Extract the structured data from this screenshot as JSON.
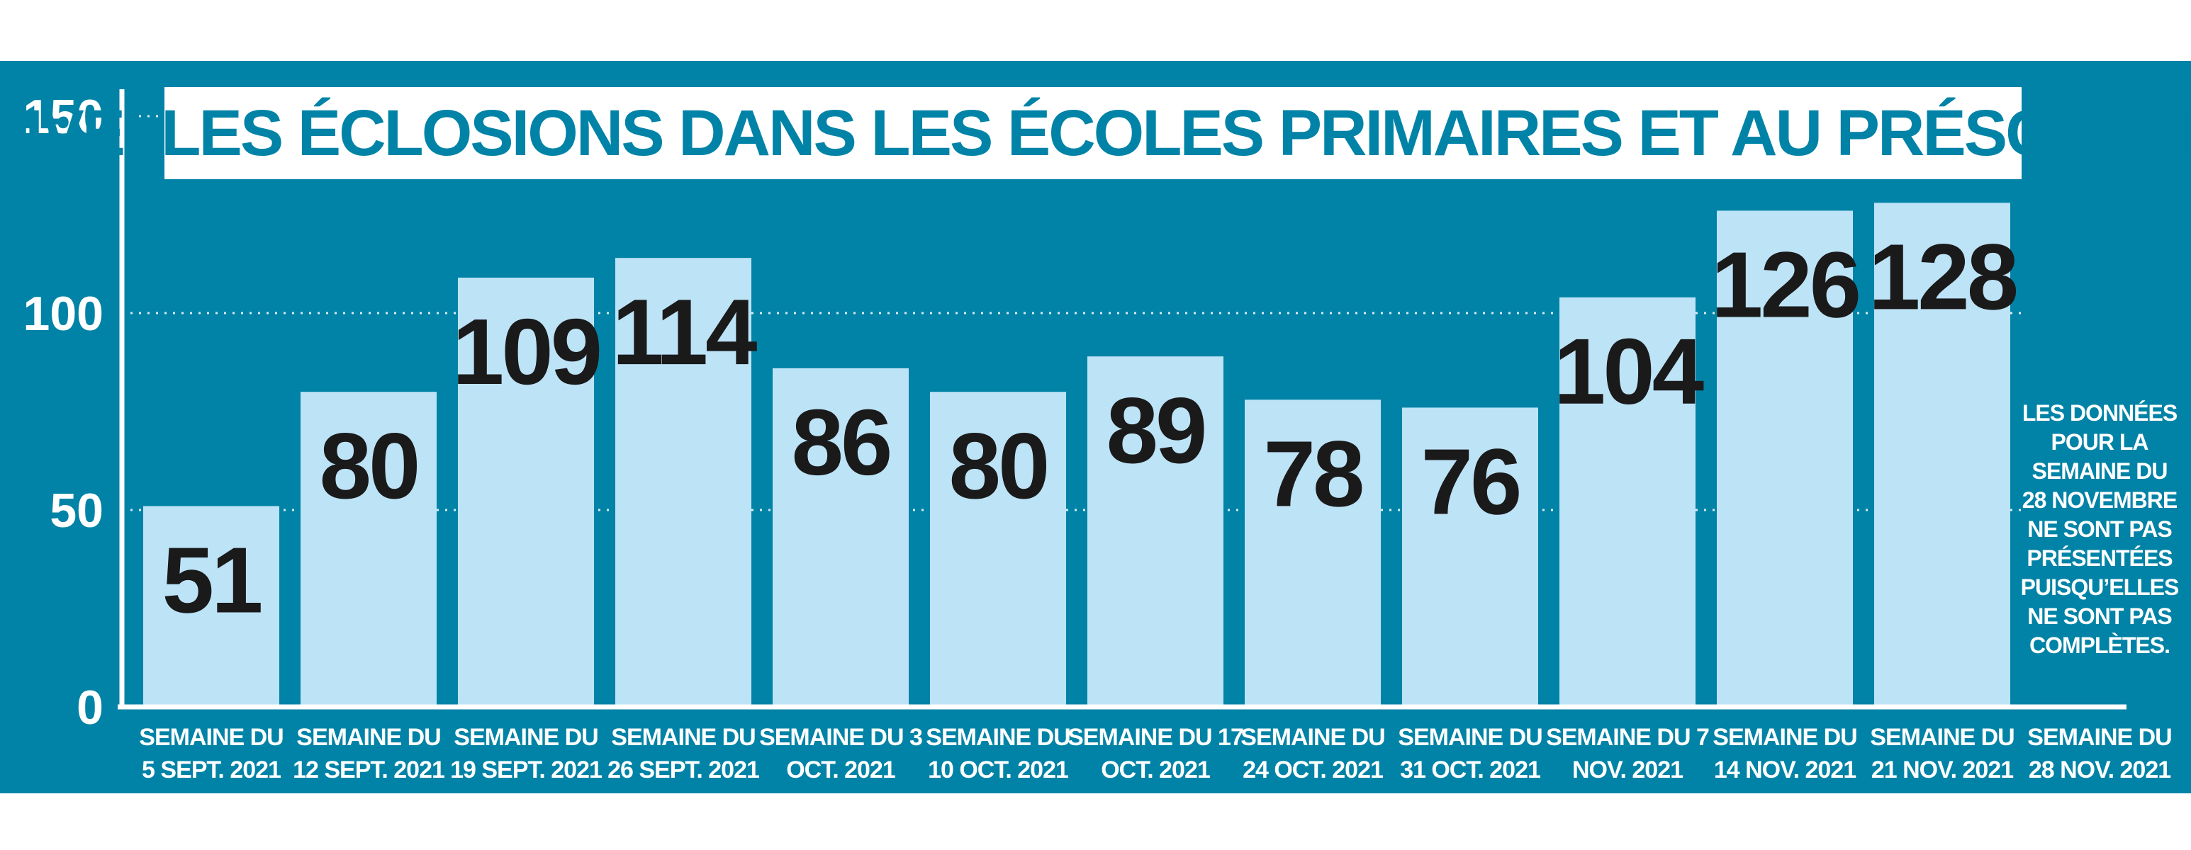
{
  "colors": {
    "background": "#0083a6",
    "bar": "#bde3f7",
    "value_label": "#1a1a1a",
    "axis_text": "#ffffff",
    "title_box": "#ffffff",
    "title_text": "#0083a6"
  },
  "chart_data": {
    "type": "bar",
    "title": "NOUVELLES ÉCLOSIONS DANS LES ÉCOLES PRIMAIRES ET AU PRÉSCOLAIRE",
    "xlabel": "",
    "ylabel": "",
    "ylim": [
      0,
      150
    ],
    "yticks": [
      "0",
      "50",
      "100",
      "150"
    ],
    "grid": true,
    "categories": [
      [
        "SEMAINE DU",
        "5 SEPT. 2021"
      ],
      [
        "SEMAINE DU",
        "12 SEPT. 2021"
      ],
      [
        "SEMAINE DU",
        "19 SEPT. 2021"
      ],
      [
        "SEMAINE DU",
        "26 SEPT. 2021"
      ],
      [
        "SEMAINE DU 3",
        "OCT. 2021"
      ],
      [
        "SEMAINE DU",
        "10 OCT. 2021"
      ],
      [
        "SEMAINE DU 17",
        "OCT. 2021"
      ],
      [
        "SEMAINE DU",
        "24 OCT. 2021"
      ],
      [
        "SEMAINE DU",
        "31 OCT. 2021"
      ],
      [
        "SEMAINE DU 7",
        "NOV. 2021"
      ],
      [
        "SEMAINE DU",
        "14 NOV. 2021"
      ],
      [
        "SEMAINE DU",
        "21 NOV. 2021"
      ],
      [
        "SEMAINE DU",
        "28 NOV. 2021"
      ]
    ],
    "values": [
      51,
      80,
      109,
      114,
      86,
      80,
      89,
      78,
      76,
      104,
      126,
      128,
      null
    ],
    "value_labels": [
      "51",
      "80",
      "109",
      "114",
      "86",
      "80",
      "89",
      "78",
      "76",
      "104",
      "126",
      "128",
      ""
    ],
    "annotation": [
      "LES DONNÉES",
      "POUR LA",
      "SEMAINE DU",
      "28 NOVEMBRE",
      "NE SONT PAS",
      "PRÉSENTÉES",
      "PUISQU’ELLES",
      "NE SONT PAS",
      "COMPLÈTES."
    ]
  }
}
